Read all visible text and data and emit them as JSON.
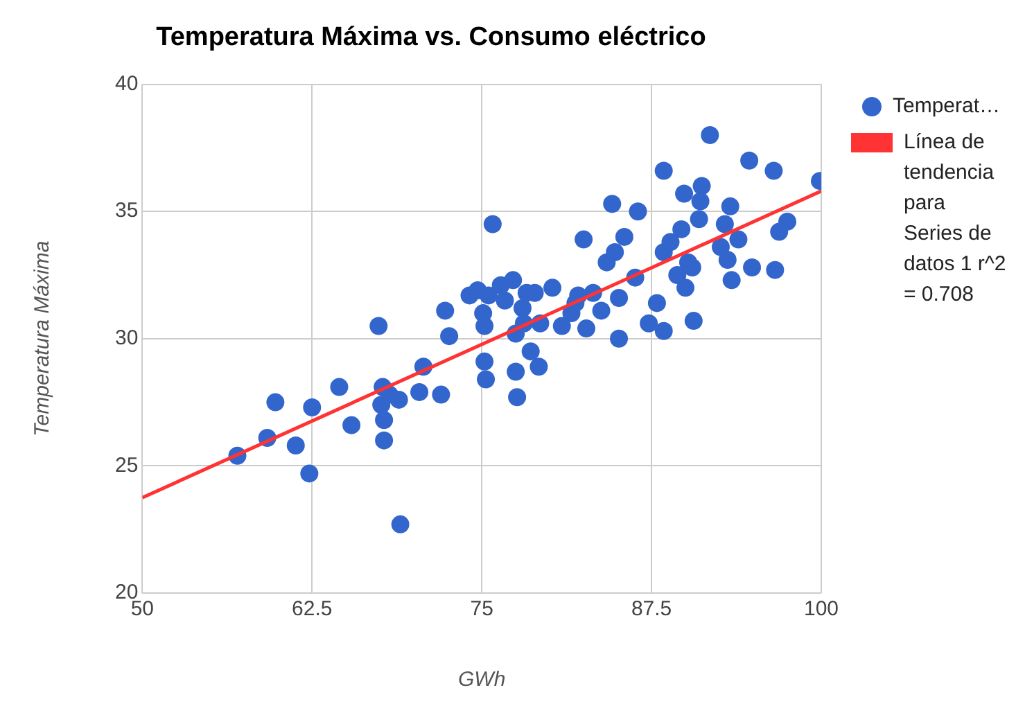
{
  "chart_data": {
    "type": "scatter",
    "title": "Temperatura Máxima vs. Consumo eléctrico",
    "xlabel": "GWh",
    "ylabel": "Temperatura Máxima",
    "xlim": [
      50,
      100
    ],
    "xticks": [
      50,
      62.5,
      75,
      87.5,
      100
    ],
    "ylim": [
      20,
      40
    ],
    "yticks": [
      20,
      25,
      30,
      35,
      40
    ],
    "grid": true,
    "legend": "right",
    "marker": "circle",
    "series": [
      {
        "name": "Temperat…",
        "color": "#3366cc",
        "x": [
          57.0,
          59.2,
          59.8,
          61.3,
          62.3,
          62.5,
          64.5,
          65.4,
          67.4,
          67.6,
          67.7,
          67.8,
          67.8,
          68.2,
          69.0,
          68.9,
          70.4,
          70.7,
          72.0,
          72.3,
          72.6,
          74.1,
          74.7,
          75.1,
          75.2,
          75.2,
          75.3,
          75.5,
          75.8,
          76.4,
          76.7,
          77.3,
          77.5,
          77.5,
          77.6,
          78.0,
          78.1,
          78.3,
          78.9,
          78.6,
          79.2,
          79.3,
          80.2,
          80.9,
          81.6,
          81.9,
          82.1,
          82.5,
          82.7,
          83.2,
          83.8,
          84.2,
          84.6,
          84.8,
          85.1,
          85.1,
          85.5,
          86.3,
          86.5,
          87.3,
          87.9,
          88.4,
          88.4,
          88.4,
          88.9,
          89.4,
          89.7,
          89.9,
          90.0,
          90.2,
          90.5,
          90.6,
          91.0,
          91.1,
          91.2,
          91.8,
          92.6,
          92.9,
          93.1,
          93.3,
          93.4,
          93.9,
          94.7,
          94.9,
          96.5,
          96.6,
          96.9,
          97.5,
          99.9
        ],
        "values": [
          25.4,
          26.1,
          27.5,
          25.8,
          24.7,
          27.3,
          28.1,
          26.6,
          30.5,
          27.4,
          28.1,
          26.8,
          26.0,
          27.8,
          22.7,
          27.6,
          27.9,
          28.9,
          27.8,
          31.1,
          30.1,
          31.7,
          31.9,
          31.0,
          30.5,
          29.1,
          28.4,
          31.7,
          34.5,
          32.1,
          31.5,
          32.3,
          30.2,
          28.7,
          27.7,
          31.2,
          30.6,
          31.8,
          31.8,
          29.5,
          28.9,
          30.6,
          32.0,
          30.5,
          31.0,
          31.4,
          31.7,
          33.9,
          30.4,
          31.8,
          31.1,
          33.0,
          35.3,
          33.4,
          30.0,
          31.6,
          34.0,
          32.4,
          35.0,
          30.6,
          31.4,
          36.6,
          30.3,
          33.4,
          33.8,
          32.5,
          34.3,
          35.7,
          32.0,
          33.0,
          32.8,
          30.7,
          34.7,
          35.4,
          36.0,
          38.0,
          33.6,
          34.5,
          33.1,
          35.2,
          32.3,
          33.9,
          37.0,
          32.8,
          36.6,
          32.7,
          34.2,
          34.6,
          36.2
        ]
      },
      {
        "name": "Línea de tendencia para Series de datos 1 r^2 = 0.708",
        "type": "line",
        "color": "#ff3333",
        "marker": "none",
        "x": [
          50,
          100
        ],
        "values": [
          23.75,
          35.8
        ]
      }
    ]
  }
}
